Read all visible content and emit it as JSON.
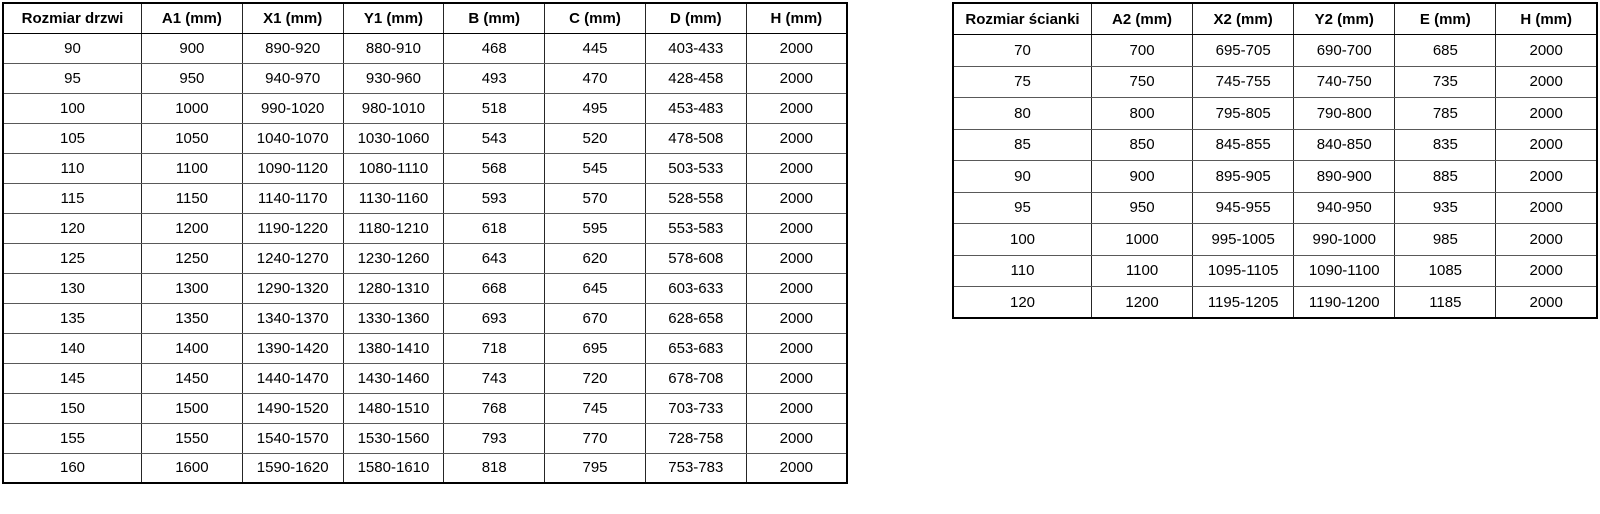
{
  "tables": [
    {
      "name": "door-sizes",
      "headers": [
        "Rozmiar drzwi",
        "A1 (mm)",
        "X1 (mm)",
        "Y1 (mm)",
        "B (mm)",
        "C (mm)",
        "D (mm)",
        "H (mm)"
      ],
      "rows": [
        [
          "90",
          "900",
          "890-920",
          "880-910",
          "468",
          "445",
          "403-433",
          "2000"
        ],
        [
          "95",
          "950",
          "940-970",
          "930-960",
          "493",
          "470",
          "428-458",
          "2000"
        ],
        [
          "100",
          "1000",
          "990-1020",
          "980-1010",
          "518",
          "495",
          "453-483",
          "2000"
        ],
        [
          "105",
          "1050",
          "1040-1070",
          "1030-1060",
          "543",
          "520",
          "478-508",
          "2000"
        ],
        [
          "110",
          "1100",
          "1090-1120",
          "1080-1110",
          "568",
          "545",
          "503-533",
          "2000"
        ],
        [
          "115",
          "1150",
          "1140-1170",
          "1130-1160",
          "593",
          "570",
          "528-558",
          "2000"
        ],
        [
          "120",
          "1200",
          "1190-1220",
          "1180-1210",
          "618",
          "595",
          "553-583",
          "2000"
        ],
        [
          "125",
          "1250",
          "1240-1270",
          "1230-1260",
          "643",
          "620",
          "578-608",
          "2000"
        ],
        [
          "130",
          "1300",
          "1290-1320",
          "1280-1310",
          "668",
          "645",
          "603-633",
          "2000"
        ],
        [
          "135",
          "1350",
          "1340-1370",
          "1330-1360",
          "693",
          "670",
          "628-658",
          "2000"
        ],
        [
          "140",
          "1400",
          "1390-1420",
          "1380-1410",
          "718",
          "695",
          "653-683",
          "2000"
        ],
        [
          "145",
          "1450",
          "1440-1470",
          "1430-1460",
          "743",
          "720",
          "678-708",
          "2000"
        ],
        [
          "150",
          "1500",
          "1490-1520",
          "1480-1510",
          "768",
          "745",
          "703-733",
          "2000"
        ],
        [
          "155",
          "1550",
          "1540-1570",
          "1530-1560",
          "793",
          "770",
          "728-758",
          "2000"
        ],
        [
          "160",
          "1600",
          "1590-1620",
          "1580-1610",
          "818",
          "795",
          "753-783",
          "2000"
        ]
      ]
    },
    {
      "name": "wall-sizes",
      "headers": [
        "Rozmiar ścianki",
        "A2 (mm)",
        "X2 (mm)",
        "Y2 (mm)",
        "E (mm)",
        "H (mm)"
      ],
      "rows": [
        [
          "70",
          "700",
          "695-705",
          "690-700",
          "685",
          "2000"
        ],
        [
          "75",
          "750",
          "745-755",
          "740-750",
          "735",
          "2000"
        ],
        [
          "80",
          "800",
          "795-805",
          "790-800",
          "785",
          "2000"
        ],
        [
          "85",
          "850",
          "845-855",
          "840-850",
          "835",
          "2000"
        ],
        [
          "90",
          "900",
          "895-905",
          "890-900",
          "885",
          "2000"
        ],
        [
          "95",
          "950",
          "945-955",
          "940-950",
          "935",
          "2000"
        ],
        [
          "100",
          "1000",
          "995-1005",
          "990-1000",
          "985",
          "2000"
        ],
        [
          "110",
          "1100",
          "1095-1105",
          "1090-1100",
          "1085",
          "2000"
        ],
        [
          "120",
          "1200",
          "1195-1205",
          "1190-1200",
          "1185",
          "2000"
        ]
      ]
    }
  ]
}
